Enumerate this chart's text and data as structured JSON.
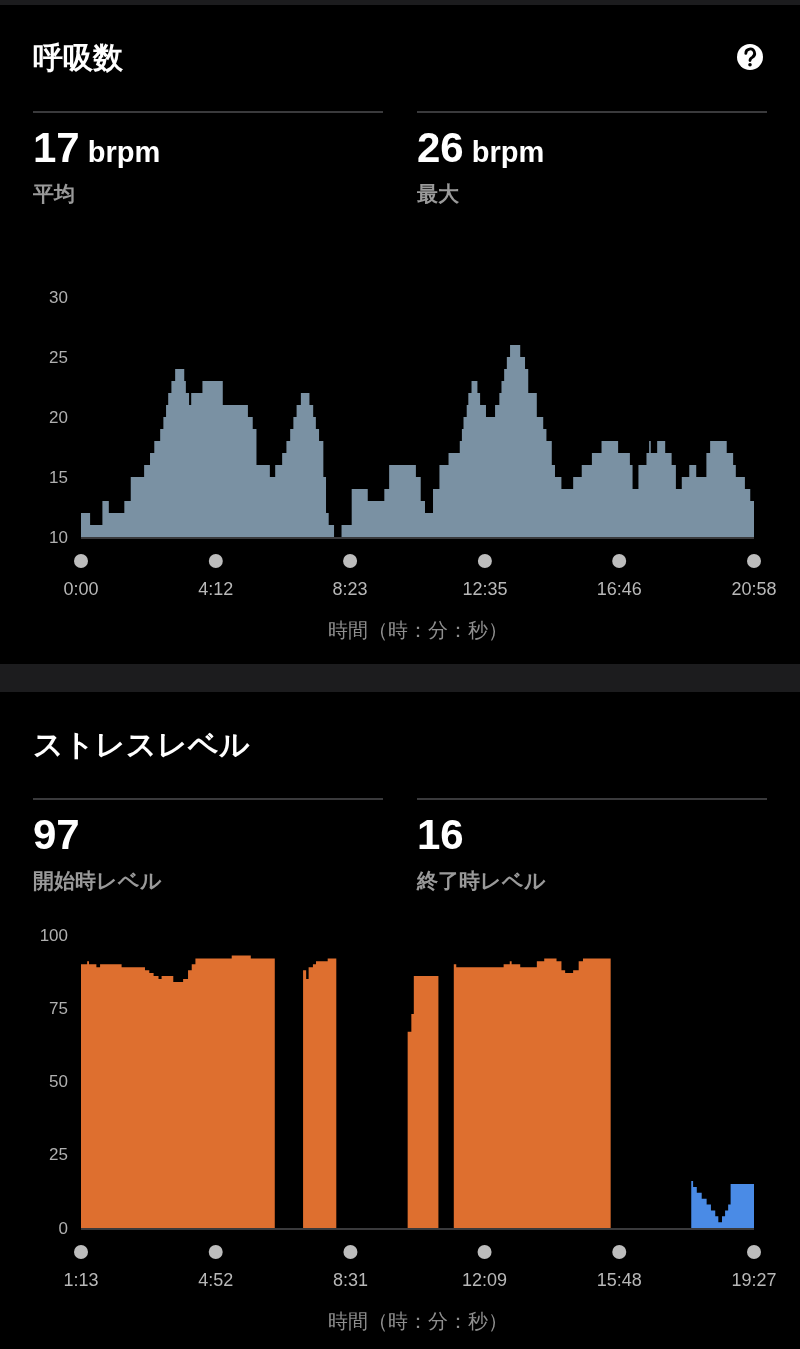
{
  "chart_data": [
    {
      "type": "area",
      "title": "呼吸数",
      "annotations": [
        "17 brpm",
        "平均",
        "26 brpm",
        "最大"
      ],
      "xlabel": "時間（時：分：秒）",
      "color": "#7a91a3",
      "x": [
        0,
        17,
        17,
        40,
        40,
        52,
        52,
        81,
        81,
        93,
        93,
        118,
        118,
        129,
        129,
        137,
        137,
        148,
        148,
        154,
        154,
        159,
        159,
        163,
        163,
        169,
        169,
        176,
        176,
        193,
        193,
        196,
        196,
        202,
        202,
        206,
        206,
        227,
        227,
        265,
        265,
        312,
        312,
        321,
        321,
        328,
        328,
        353,
        353,
        363,
        363,
        376,
        376,
        384,
        384,
        391,
        391,
        397,
        397,
        403,
        403,
        411,
        411,
        427,
        427,
        434,
        434,
        439,
        439,
        445,
        445,
        453,
        453,
        458,
        458,
        463,
        463,
        473,
        473,
        487,
        487,
        506,
        506,
        536,
        536,
        567,
        567,
        576,
        576,
        626,
        626,
        635,
        635,
        643,
        643,
        658,
        658,
        670,
        670,
        687,
        687,
        708,
        708,
        712,
        712,
        715,
        715,
        721,
        721,
        724,
        724,
        730,
        730,
        741,
        741,
        746,
        746,
        757,
        757,
        774,
        774,
        782,
        782,
        786,
        786,
        791,
        791,
        796,
        796,
        802,
        802,
        821,
        821,
        830,
        830,
        836,
        836,
        852,
        852,
        864,
        864,
        870,
        870,
        880,
        880,
        886,
        886,
        898,
        898,
        920,
        920,
        936,
        936,
        955,
        955,
        973,
        973,
        1004,
        1004,
        1026,
        1026,
        1031,
        1031,
        1042,
        1042,
        1057,
        1057,
        1062,
        1062,
        1065,
        1065,
        1077,
        1077,
        1092,
        1092,
        1104,
        1104,
        1112,
        1112,
        1123,
        1123,
        1137,
        1137,
        1150,
        1150,
        1169,
        1169,
        1176,
        1176,
        1207,
        1207,
        1219,
        1219,
        1224,
        1224,
        1241,
        1241,
        1251,
        1251,
        1258
      ],
      "values": [
        12,
        12,
        11,
        11,
        13,
        13,
        12,
        12,
        13,
        13,
        15,
        15,
        16,
        16,
        17,
        17,
        18,
        18,
        19,
        19,
        20,
        20,
        21,
        21,
        22,
        22,
        23,
        23,
        24,
        24,
        23,
        23,
        22,
        22,
        21,
        21,
        22,
        22,
        23,
        23,
        21,
        21,
        20,
        20,
        19,
        19,
        16,
        16,
        15,
        15,
        16,
        16,
        17,
        17,
        18,
        18,
        19,
        19,
        20,
        20,
        21,
        21,
        22,
        22,
        21,
        21,
        20,
        20,
        19,
        19,
        18,
        18,
        15,
        15,
        12,
        12,
        11,
        11,
        10,
        10,
        11,
        11,
        14,
        14,
        13,
        13,
        14,
        14,
        16,
        16,
        15,
        15,
        13,
        13,
        12,
        12,
        14,
        14,
        16,
        16,
        17,
        17,
        18,
        18,
        19,
        19,
        20,
        20,
        21,
        21,
        22,
        22,
        23,
        23,
        22,
        22,
        21,
        21,
        20,
        20,
        21,
        21,
        22,
        22,
        23,
        23,
        24,
        24,
        25,
        25,
        26,
        26,
        25,
        25,
        24,
        24,
        22,
        22,
        20,
        20,
        19,
        19,
        18,
        18,
        16,
        16,
        15,
        15,
        14,
        14,
        15,
        15,
        16,
        16,
        17,
        17,
        18,
        18,
        17,
        17,
        16,
        16,
        14,
        14,
        16,
        16,
        17,
        17,
        18,
        18,
        17,
        17,
        18,
        18,
        17,
        17,
        16,
        16,
        14,
        14,
        15,
        15,
        16,
        16,
        15,
        15,
        17,
        17,
        18,
        18,
        17,
        17,
        16,
        16,
        15,
        15,
        14,
        14,
        13,
        13
      ],
      "xlim": [
        0,
        1258
      ],
      "xticks": [
        {
          "value": 0,
          "label": "0:00"
        },
        {
          "value": 252,
          "label": "4:12"
        },
        {
          "value": 503,
          "label": "8:23"
        },
        {
          "value": 755,
          "label": "12:35"
        },
        {
          "value": 1006,
          "label": "16:46"
        },
        {
          "value": 1258,
          "label": "20:58"
        }
      ],
      "ylim": [
        10,
        30
      ],
      "yticks": [
        10,
        15,
        20,
        25,
        30
      ]
    },
    {
      "type": "area",
      "title": "ストレスレベル",
      "annotations": [
        "97",
        "開始時レベル",
        "16",
        "終了時レベル"
      ],
      "xlabel": "時間（時：分：秒）",
      "series": [
        {
          "color": "#de6f2f",
          "x": [
            73,
            83,
            83,
            86,
            86,
            98,
            98,
            104,
            104,
            139,
            139,
            177,
            177,
            184,
            184,
            191,
            191,
            199,
            199,
            204,
            204,
            223,
            223,
            239,
            239,
            247,
            247,
            253,
            253,
            259,
            259,
            318,
            318,
            349,
            349,
            388
          ],
          "values": [
            90,
            90,
            91,
            91,
            90,
            90,
            89,
            89,
            90,
            90,
            89,
            89,
            88,
            88,
            87,
            87,
            86,
            86,
            85,
            85,
            86,
            86,
            84,
            84,
            85,
            85,
            88,
            88,
            90,
            90,
            92,
            92,
            93,
            93,
            92,
            92
          ]
        },
        {
          "color": "#de6f2f",
          "x": [
            434,
            439,
            439,
            443,
            443,
            450,
            450,
            455,
            455,
            474,
            474,
            488
          ],
          "values": [
            88,
            88,
            85,
            85,
            89,
            89,
            90,
            90,
            91,
            91,
            92,
            92
          ]
        },
        {
          "color": "#de6f2f",
          "x": [
            604,
            610,
            610,
            614,
            614,
            654
          ],
          "values": [
            67,
            67,
            73,
            73,
            86,
            86
          ]
        },
        {
          "color": "#de6f2f",
          "x": [
            679,
            683,
            683,
            760,
            760,
            770,
            770,
            773,
            773,
            787,
            787,
            814,
            814,
            826,
            826,
            846,
            846,
            854,
            854,
            860,
            860,
            873,
            873,
            882,
            882,
            889,
            889,
            934
          ],
          "values": [
            90,
            90,
            89,
            89,
            90,
            90,
            91,
            91,
            90,
            90,
            89,
            89,
            91,
            91,
            92,
            92,
            91,
            91,
            88,
            88,
            87,
            87,
            88,
            88,
            91,
            91,
            92,
            92
          ]
        },
        {
          "color": "#4a8be6",
          "x": [
            1065,
            1068,
            1068,
            1074,
            1074,
            1082,
            1082,
            1090,
            1090,
            1097,
            1097,
            1104,
            1104,
            1109,
            1109,
            1115,
            1115,
            1120,
            1120,
            1125,
            1125,
            1129,
            1129,
            1167
          ],
          "values": [
            16,
            16,
            14,
            14,
            12,
            12,
            10,
            10,
            8,
            8,
            6,
            6,
            4,
            4,
            2,
            2,
            4,
            4,
            6,
            6,
            8,
            8,
            15,
            15
          ]
        }
      ],
      "xlim": [
        73,
        1167
      ],
      "xticks": [
        {
          "value": 73,
          "label": "1:13"
        },
        {
          "value": 292,
          "label": "4:52"
        },
        {
          "value": 511,
          "label": "8:31"
        },
        {
          "value": 729,
          "label": "12:09"
        },
        {
          "value": 948,
          "label": "15:48"
        },
        {
          "value": 1167,
          "label": "19:27"
        }
      ],
      "ylim": [
        0,
        100
      ],
      "yticks": [
        0,
        25,
        50,
        75,
        100
      ]
    }
  ]
}
